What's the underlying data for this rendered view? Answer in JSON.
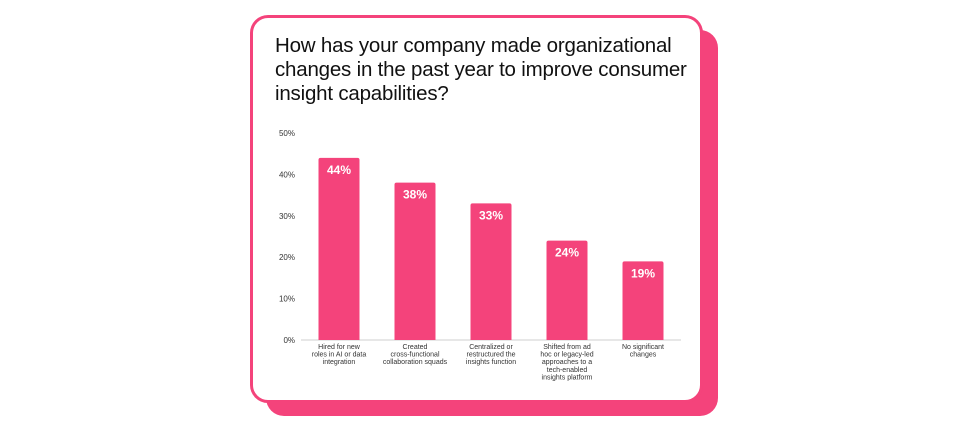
{
  "chart_data": {
    "type": "bar",
    "title": "How has your company made organizational changes in the past year to improve consumer insight capabilities?",
    "categories": [
      [
        "Hired for new",
        "roles in AI or data",
        "integration"
      ],
      [
        "Created",
        "cross-functional",
        "collaboration squads"
      ],
      [
        "Centralized or",
        "restructured the",
        "insights function"
      ],
      [
        "Shifted from ad",
        "hoc or legacy-led",
        "approaches to a",
        "tech-enabled",
        "insights platform"
      ],
      [
        "No significant",
        "changes"
      ]
    ],
    "values": [
      44,
      38,
      33,
      24,
      19
    ],
    "value_labels": [
      "44%",
      "38%",
      "33%",
      "24%",
      "19%"
    ],
    "yticks": [
      "0%",
      "10%",
      "20%",
      "30%",
      "40%",
      "50%"
    ],
    "ylim": [
      0,
      50
    ],
    "xlabel": "",
    "ylabel": "",
    "colors": {
      "bar": "#f4437b",
      "accent": "#f4437b",
      "text": "#111111"
    }
  }
}
